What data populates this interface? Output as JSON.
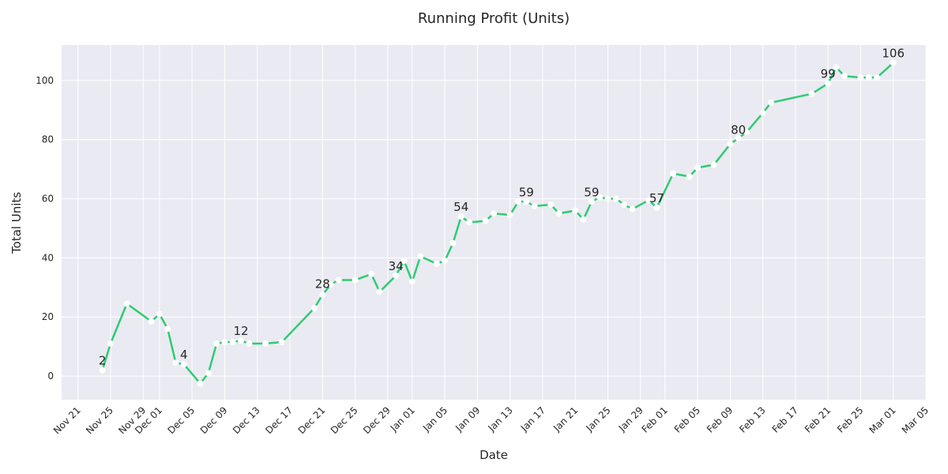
{
  "chart_data": {
    "type": "line",
    "title": "Running Profit (Units)",
    "xlabel": "Date",
    "ylabel": "Total Units",
    "xlim": [
      "2024-11-19",
      "2025-03-05"
    ],
    "ylim": [
      -8,
      112
    ],
    "x_ticks": [
      "2024-11-21",
      "2024-11-25",
      "2024-11-29",
      "2024-12-01",
      "2024-12-05",
      "2024-12-09",
      "2024-12-13",
      "2024-12-17",
      "2024-12-21",
      "2024-12-25",
      "2024-12-29",
      "2025-01-01",
      "2025-01-05",
      "2025-01-09",
      "2025-01-13",
      "2025-01-17",
      "2025-01-21",
      "2025-01-25",
      "2025-01-29",
      "2025-02-01",
      "2025-02-05",
      "2025-02-09",
      "2025-02-13",
      "2025-02-17",
      "2025-02-21",
      "2025-02-25",
      "2025-03-01",
      "2025-03-05"
    ],
    "x_tick_labels": [
      "Nov 21",
      "Nov 25",
      "Nov 29",
      "Dec 01",
      "Dec 05",
      "Dec 09",
      "Dec 13",
      "Dec 17",
      "Dec 21",
      "Dec 25",
      "Dec 29",
      "Jan 01",
      "Jan 05",
      "Jan 09",
      "Jan 13",
      "Jan 17",
      "Jan 21",
      "Jan 25",
      "Jan 29",
      "Feb 01",
      "Feb 05",
      "Feb 09",
      "Feb 13",
      "Feb 17",
      "Feb 21",
      "Feb 25",
      "Mar 01",
      "Mar 05"
    ],
    "y_ticks": [
      0,
      20,
      40,
      60,
      80,
      100
    ],
    "grid": true,
    "series": [
      {
        "color": "#2ecc71",
        "points": [
          [
            "2024-11-24",
            2
          ],
          [
            "2024-11-25",
            11
          ],
          [
            "2024-11-27",
            24.5
          ],
          [
            "2024-11-30",
            18.5
          ],
          [
            "2024-12-01",
            21
          ],
          [
            "2024-12-02",
            16
          ],
          [
            "2024-12-03",
            4.5
          ],
          [
            "2024-12-04",
            4
          ],
          [
            "2024-12-06",
            -2.5
          ],
          [
            "2024-12-07",
            1
          ],
          [
            "2024-12-08",
            11
          ],
          [
            "2024-12-09",
            11.5
          ],
          [
            "2024-12-10",
            11.5
          ],
          [
            "2024-12-11",
            12
          ],
          [
            "2024-12-12",
            11
          ],
          [
            "2024-12-14",
            11
          ],
          [
            "2024-12-16",
            11.5
          ],
          [
            "2024-12-20",
            23
          ],
          [
            "2024-12-21",
            27.5
          ],
          [
            "2024-12-22",
            31
          ],
          [
            "2024-12-23",
            32.5
          ],
          [
            "2024-12-25",
            32.5
          ],
          [
            "2024-12-27",
            34.5
          ],
          [
            "2024-12-28",
            28.5
          ],
          [
            "2024-12-30",
            34
          ],
          [
            "2024-12-31",
            39
          ],
          [
            "2025-01-01",
            32
          ],
          [
            "2025-01-02",
            40.5
          ],
          [
            "2025-01-04",
            38
          ],
          [
            "2025-01-05",
            39
          ],
          [
            "2025-01-06",
            45
          ],
          [
            "2025-01-07",
            54
          ],
          [
            "2025-01-08",
            52
          ],
          [
            "2025-01-10",
            52.5
          ],
          [
            "2025-01-11",
            55
          ],
          [
            "2025-01-13",
            54.5
          ],
          [
            "2025-01-14",
            59
          ],
          [
            "2025-01-15",
            59
          ],
          [
            "2025-01-16",
            57.5
          ],
          [
            "2025-01-18",
            58
          ],
          [
            "2025-01-19",
            55
          ],
          [
            "2025-01-21",
            56
          ],
          [
            "2025-01-22",
            53
          ],
          [
            "2025-01-23",
            59
          ],
          [
            "2025-01-24",
            60.5
          ],
          [
            "2025-01-25",
            60
          ],
          [
            "2025-01-26",
            60
          ],
          [
            "2025-01-27",
            58
          ],
          [
            "2025-01-28",
            56.5
          ],
          [
            "2025-01-30",
            59.5
          ],
          [
            "2025-01-31",
            57
          ],
          [
            "2025-02-02",
            68.5
          ],
          [
            "2025-02-04",
            67.5
          ],
          [
            "2025-02-05",
            70.5
          ],
          [
            "2025-02-07",
            71.5
          ],
          [
            "2025-02-09",
            78.5
          ],
          [
            "2025-02-10",
            80.5
          ],
          [
            "2025-02-11",
            82.5
          ],
          [
            "2025-02-13",
            89
          ],
          [
            "2025-02-14",
            92.5
          ],
          [
            "2025-02-19",
            95.5
          ],
          [
            "2025-02-21",
            99
          ],
          [
            "2025-02-22",
            104.5
          ],
          [
            "2025-02-23",
            101.5
          ],
          [
            "2025-02-25",
            101
          ],
          [
            "2025-02-26",
            101
          ],
          [
            "2025-02-27",
            101
          ],
          [
            "2025-03-01",
            106
          ]
        ]
      }
    ],
    "annotations": [
      {
        "x": "2024-11-24",
        "y": 2,
        "text": "2"
      },
      {
        "x": "2024-12-04",
        "y": 4,
        "text": "4"
      },
      {
        "x": "2024-12-11",
        "y": 12,
        "text": "12"
      },
      {
        "x": "2024-12-21",
        "y": 28,
        "text": "28"
      },
      {
        "x": "2024-12-30",
        "y": 34,
        "text": "34"
      },
      {
        "x": "2025-01-07",
        "y": 54,
        "text": "54"
      },
      {
        "x": "2025-01-15",
        "y": 59,
        "text": "59"
      },
      {
        "x": "2025-01-23",
        "y": 59,
        "text": "59"
      },
      {
        "x": "2025-01-31",
        "y": 57,
        "text": "57"
      },
      {
        "x": "2025-02-10",
        "y": 80,
        "text": "80"
      },
      {
        "x": "2025-02-21",
        "y": 99,
        "text": "99"
      },
      {
        "x": "2025-03-01",
        "y": 106,
        "text": "106"
      }
    ]
  }
}
